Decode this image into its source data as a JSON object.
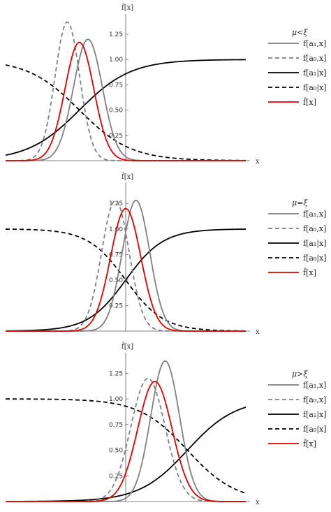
{
  "chart_data": [
    {
      "type": "line",
      "title": "",
      "xlabel": "x",
      "ylabel": "f̂[x]",
      "xlim": [
        -3.5,
        3.5
      ],
      "ylim": [
        0,
        1.45
      ],
      "yticks": [
        0.25,
        0.5,
        0.75,
        1.0,
        1.25
      ],
      "ytick_labels": [
        "0.25",
        "0.50",
        "0.75",
        "1.00",
        "1.25"
      ],
      "legend_title": "μ<ξ",
      "series": [
        {
          "name": "f[a₁,x]",
          "color": "#808080",
          "dash": "solid",
          "peak_x": -1.1,
          "peak_y": 1.2,
          "spread": 0.42
        },
        {
          "name": "f[a₀,x]",
          "color": "#808080",
          "dash": "dashed",
          "peak_x": -1.7,
          "peak_y": 1.37,
          "spread": 0.36
        },
        {
          "name": "f[a₁|x]",
          "color": "#000000",
          "dash": "solid",
          "center": -1.35,
          "scale": 0.75
        },
        {
          "name": "f[a₀|x]",
          "color": "#000000",
          "dash": "dashed",
          "center": -1.35,
          "scale": 0.75
        },
        {
          "name": "f̂[x]",
          "color": "#e00000",
          "dash": "solid",
          "peak_x": -1.35,
          "peak_y": 1.17,
          "spread": 0.42
        }
      ]
    },
    {
      "type": "line",
      "title": "",
      "xlabel": "x",
      "ylabel": "f̂[x]",
      "xlim": [
        -3.5,
        3.5
      ],
      "ylim": [
        0,
        1.45
      ],
      "yticks": [
        0.25,
        0.5,
        0.75,
        1.0,
        1.25
      ],
      "ytick_labels": [
        "0.25",
        "0.50",
        "0.75",
        "1.00",
        "1.25"
      ],
      "legend_title": "μ=ξ",
      "series": [
        {
          "name": "f[a₁,x]",
          "color": "#808080",
          "dash": "solid",
          "peak_x": 0.3,
          "peak_y": 1.28,
          "spread": 0.4
        },
        {
          "name": "f[a₀,x]",
          "color": "#808080",
          "dash": "dashed",
          "peak_x": -0.3,
          "peak_y": 1.28,
          "spread": 0.4
        },
        {
          "name": "f[a₁|x]",
          "color": "#000000",
          "dash": "solid",
          "center": 0.0,
          "scale": 0.55
        },
        {
          "name": "f[a₀|x]",
          "color": "#000000",
          "dash": "dashed",
          "center": 0.0,
          "scale": 0.55
        },
        {
          "name": "f̂[x]",
          "color": "#e00000",
          "dash": "solid",
          "peak_x": 0.0,
          "peak_y": 1.2,
          "spread": 0.44
        }
      ]
    },
    {
      "type": "line",
      "title": "",
      "xlabel": "x",
      "ylabel": "f̂[x]",
      "xlim": [
        -3.5,
        3.5
      ],
      "ylim": [
        0,
        1.45
      ],
      "yticks": [
        0.25,
        0.5,
        0.75,
        1.0,
        1.25
      ],
      "ytick_labels": [
        "0.25",
        "0.50",
        "0.75",
        "1.00",
        "1.25"
      ],
      "legend_title": "μ>ξ",
      "series": [
        {
          "name": "f[a₁,x]",
          "color": "#808080",
          "dash": "solid",
          "peak_x": 1.15,
          "peak_y": 1.37,
          "spread": 0.42
        },
        {
          "name": "f[a₀,x]",
          "color": "#808080",
          "dash": "dashed",
          "peak_x": 0.65,
          "peak_y": 1.2,
          "spread": 0.5
        },
        {
          "name": "f[a₁|x]",
          "color": "#000000",
          "dash": "solid",
          "center": 1.8,
          "scale": 0.7
        },
        {
          "name": "f[a₀|x]",
          "color": "#000000",
          "dash": "dashed",
          "center": 1.8,
          "scale": 0.7
        },
        {
          "name": "f̂[x]",
          "color": "#e00000",
          "dash": "solid",
          "peak_x": 0.85,
          "peak_y": 1.17,
          "spread": 0.5
        }
      ]
    }
  ]
}
